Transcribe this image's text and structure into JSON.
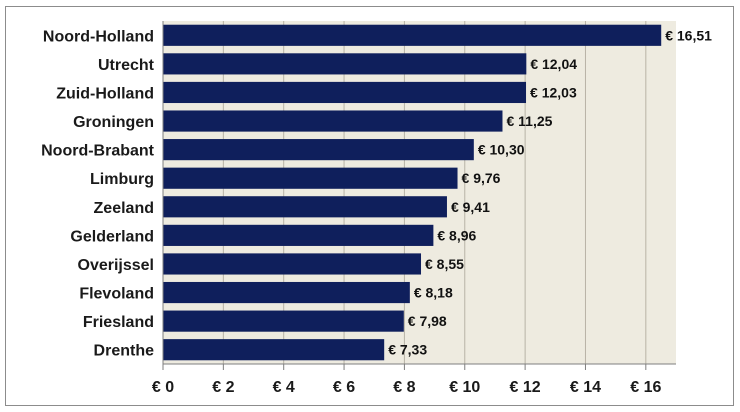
{
  "chart_data": {
    "type": "bar",
    "orientation": "horizontal",
    "categories": [
      "Noord-Holland",
      "Utrecht",
      "Zuid-Holland",
      "Groningen",
      "Noord-Brabant",
      "Limburg",
      "Zeeland",
      "Gelderland",
      "Overijssel",
      "Flevoland",
      "Friesland",
      "Drenthe"
    ],
    "values": [
      16.51,
      12.04,
      12.03,
      11.25,
      10.3,
      9.76,
      9.41,
      8.96,
      8.55,
      8.18,
      7.98,
      7.33
    ],
    "value_labels": [
      "€ 16,51",
      "€ 12,04",
      "€ 12,03",
      "€ 11,25",
      "€ 10,30",
      "€ 9,76",
      "€ 9,41",
      "€ 8,96",
      "€ 8,55",
      "€ 8,18",
      "€ 7,98",
      "€ 7,33"
    ],
    "x_ticks": [
      0,
      2,
      4,
      6,
      8,
      10,
      12,
      14,
      16
    ],
    "x_tick_labels": [
      "€ 0",
      "€ 2",
      "€ 4",
      "€ 6",
      "€ 8",
      "€ 10",
      "€ 12",
      "€ 14",
      "€ 16"
    ],
    "xlim": [
      0,
      17
    ],
    "title": "",
    "xlabel": "",
    "ylabel": "",
    "grid": "vertical",
    "legend": "none",
    "colors": {
      "bar": "#0f1f5c",
      "plot_background": "#eeebe0",
      "grid": "#b8b3a6",
      "axis": "#7f7f7f"
    }
  }
}
